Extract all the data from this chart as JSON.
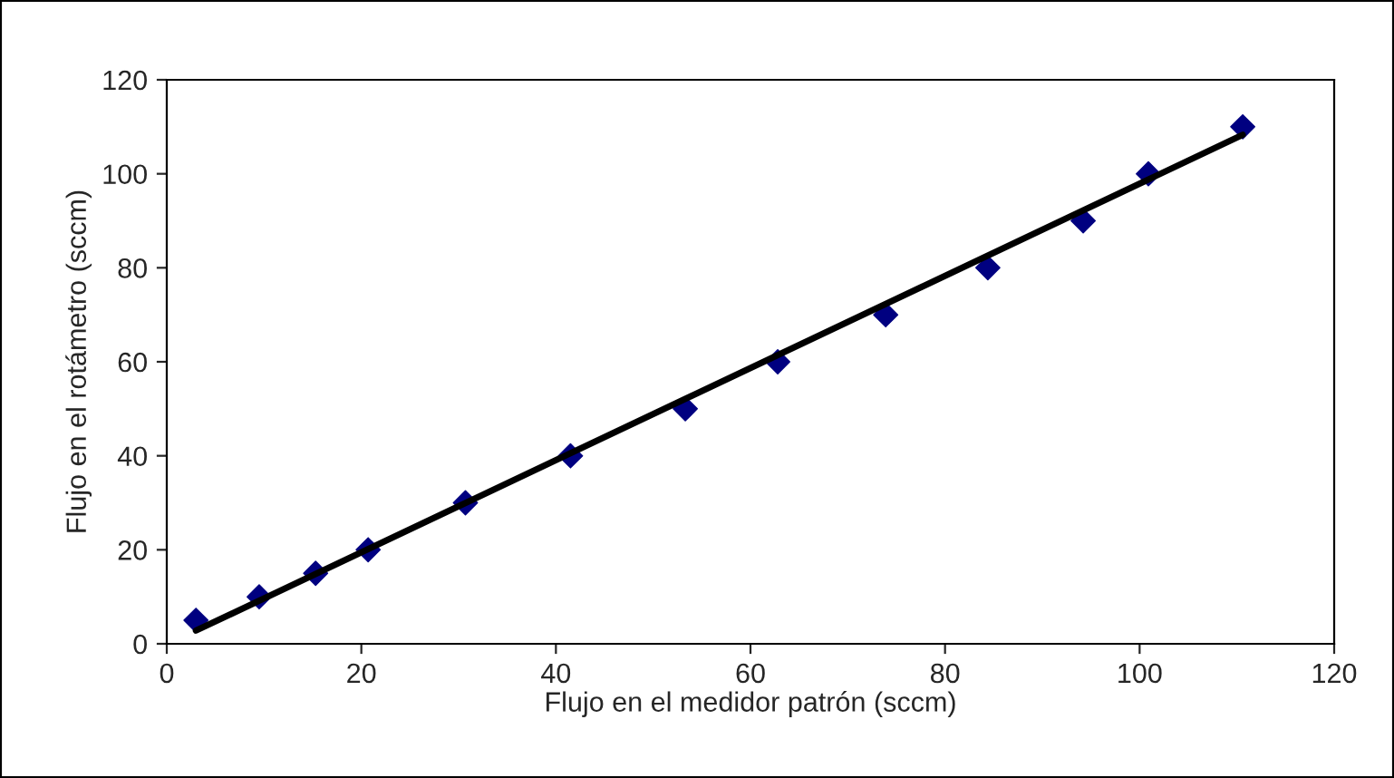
{
  "chart_data": {
    "type": "scatter",
    "xlabel": "Flujo en el medidor patrón (sccm)",
    "ylabel": "Flujo en el rotámetro (sccm)",
    "xlim": [
      0,
      120
    ],
    "ylim": [
      0,
      120
    ],
    "xticks": [
      0,
      20,
      40,
      60,
      80,
      100,
      120
    ],
    "yticks": [
      0,
      20,
      40,
      60,
      80,
      100,
      120
    ],
    "grid": false,
    "series": [
      {
        "color": "#000080",
        "marker": "diamond",
        "x": [
          3.0,
          9.5,
          15.3,
          20.7,
          30.7,
          41.5,
          53.3,
          62.8,
          73.9,
          84.4,
          94.2,
          100.9,
          110.6
        ],
        "values": [
          5,
          10,
          15,
          20,
          30,
          40,
          50,
          60,
          70,
          80,
          90,
          100,
          110
        ]
      },
      {
        "type": "line",
        "color": "#000000",
        "marker": "none",
        "line_style": "solid",
        "x": [
          3.0,
          110.6
        ],
        "values": [
          2.8,
          108.3
        ]
      }
    ]
  }
}
